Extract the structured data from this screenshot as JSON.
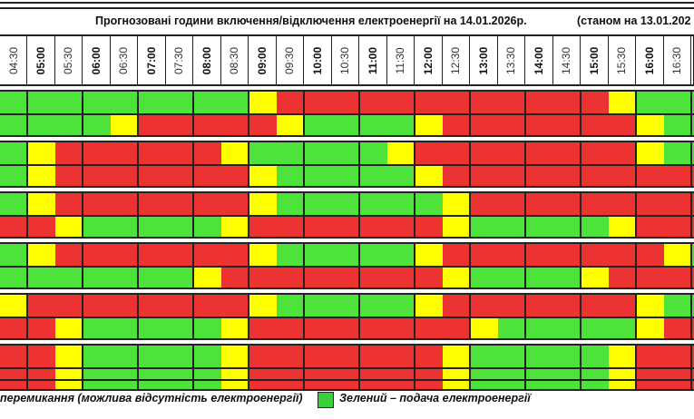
{
  "title": "Прогнозовані години включення/відключення електроенергії на 14.01.2026р.",
  "as_of": "(станом на 13.01.202",
  "colors": {
    "G": "#4ee33a",
    "R": "#ed3232",
    "Y": "#ffff00",
    "green_legend": "#3ccf3c"
  },
  "time_slots": [
    "04:30",
    "05:00",
    "05:30",
    "06:00",
    "06:30",
    "07:00",
    "07:30",
    "08:00",
    "08:30",
    "09:00",
    "09:30",
    "10:00",
    "10:30",
    "11:00",
    "11:30",
    "12:00",
    "12:30",
    "13:00",
    "13:30",
    "14:00",
    "14:30",
    "15:00",
    "15:30",
    "16:00",
    "16:30",
    ""
  ],
  "rows": [
    [
      "G",
      "G",
      "G",
      "G",
      "G",
      "G",
      "G",
      "G",
      "G",
      "Y",
      "R",
      "R",
      "R",
      "R",
      "R",
      "R",
      "R",
      "R",
      "R",
      "R",
      "R",
      "R",
      "Y",
      "G",
      "G",
      "G"
    ],
    [
      "G",
      "G",
      "G",
      "G",
      "Y",
      "R",
      "R",
      "R",
      "R",
      "R",
      "Y",
      "G",
      "G",
      "G",
      "G",
      "Y",
      "R",
      "R",
      "R",
      "R",
      "R",
      "R",
      "R",
      "Y",
      "G",
      "G"
    ],
    [
      "G",
      "Y",
      "R",
      "R",
      "R",
      "R",
      "R",
      "R",
      "Y",
      "G",
      "G",
      "G",
      "G",
      "G",
      "Y",
      "R",
      "R",
      "R",
      "R",
      "R",
      "R",
      "R",
      "R",
      "Y",
      "G",
      "G"
    ],
    [
      "G",
      "Y",
      "R",
      "R",
      "R",
      "R",
      "R",
      "R",
      "R",
      "Y",
      "G",
      "G",
      "G",
      "G",
      "G",
      "Y",
      "R",
      "R",
      "R",
      "R",
      "R",
      "R",
      "R",
      "R",
      "R",
      "R"
    ],
    [
      "G",
      "Y",
      "R",
      "R",
      "R",
      "R",
      "R",
      "R",
      "R",
      "Y",
      "G",
      "G",
      "G",
      "G",
      "G",
      "G",
      "Y",
      "R",
      "R",
      "R",
      "R",
      "R",
      "R",
      "R",
      "R",
      "R"
    ],
    [
      "R",
      "R",
      "Y",
      "G",
      "G",
      "G",
      "G",
      "G",
      "Y",
      "R",
      "R",
      "R",
      "R",
      "R",
      "R",
      "R",
      "Y",
      "G",
      "G",
      "G",
      "G",
      "G",
      "Y",
      "R",
      "R",
      "R"
    ],
    [
      "G",
      "Y",
      "R",
      "R",
      "R",
      "R",
      "R",
      "R",
      "R",
      "Y",
      "G",
      "G",
      "G",
      "G",
      "G",
      "Y",
      "R",
      "R",
      "R",
      "R",
      "R",
      "R",
      "R",
      "R",
      "Y",
      "G"
    ],
    [
      "G",
      "G",
      "G",
      "G",
      "G",
      "G",
      "G",
      "Y",
      "R",
      "R",
      "R",
      "R",
      "R",
      "R",
      "R",
      "R",
      "Y",
      "G",
      "G",
      "G",
      "G",
      "Y",
      "R",
      "R",
      "R",
      "R"
    ],
    [
      "Y",
      "R",
      "R",
      "R",
      "R",
      "R",
      "R",
      "R",
      "R",
      "Y",
      "G",
      "G",
      "G",
      "G",
      "G",
      "Y",
      "R",
      "R",
      "R",
      "R",
      "R",
      "R",
      "R",
      "Y",
      "G",
      "G"
    ],
    [
      "R",
      "R",
      "Y",
      "G",
      "G",
      "G",
      "G",
      "G",
      "Y",
      "R",
      "R",
      "R",
      "R",
      "R",
      "R",
      "R",
      "R",
      "Y",
      "G",
      "G",
      "G",
      "G",
      "G",
      "Y",
      "R",
      "R"
    ],
    [
      "R",
      "R",
      "Y",
      "G",
      "G",
      "G",
      "G",
      "G",
      "Y",
      "R",
      "R",
      "R",
      "R",
      "R",
      "R",
      "R",
      "Y",
      "G",
      "G",
      "G",
      "G",
      "G",
      "Y",
      "R",
      "R",
      "R"
    ],
    [
      "R",
      "R",
      "Y",
      "G",
      "G",
      "G",
      "G",
      "G",
      "Y",
      "R",
      "R",
      "R",
      "R",
      "R",
      "R",
      "R",
      "Y",
      "G",
      "G",
      "G",
      "G",
      "G",
      "Y",
      "R",
      "R",
      "R"
    ]
  ],
  "legend": {
    "yellow_text": "перемикання (можлива відсутність електроенергії)",
    "green_text": "Зелений – подача електроенергії"
  }
}
